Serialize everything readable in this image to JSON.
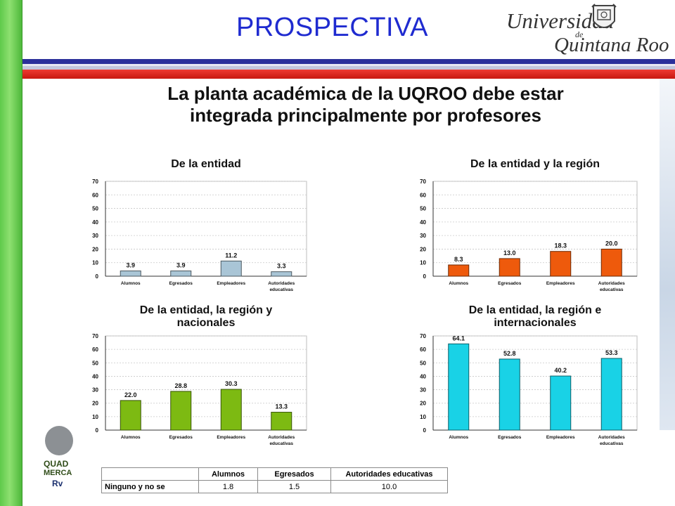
{
  "slide_title": "PROSPECTIVA",
  "logo": {
    "word1": "Universidad",
    "word2": "de",
    "word3": "Quintana Roo"
  },
  "heading": {
    "line1": "La planta académica de la UQROO debe estar",
    "line2": "integrada principalmente por profesores"
  },
  "side_logo": {
    "line1": "QUAD",
    "line2": "MERCA",
    "line3": "Rv"
  },
  "colors": {
    "title": "#1f2bd0",
    "chart1_bar": "#a9c5d6",
    "chart2_bar": "#ee5a0c",
    "chart3_bar": "#7dba12",
    "chart4_bar": "#19d2e6",
    "left_bar": "#5fc94a",
    "stripe_blue": "#2b2f9a",
    "stripe_red": "#e0271e"
  },
  "chart_data": [
    {
      "type": "bar",
      "title_lines": [
        "De la entidad"
      ],
      "categories": [
        "Alumnos",
        "Egresados",
        "Empleadores",
        "Autoridades educativas"
      ],
      "values": [
        3.9,
        3.9,
        11.2,
        3.3
      ],
      "value_labels": [
        "3.9",
        "3.9",
        "11.2",
        "3.3"
      ],
      "ylim": [
        0,
        70
      ],
      "yticks": [
        "70",
        "60",
        "50",
        "40",
        "30",
        "20",
        "10",
        "0"
      ],
      "grid": true
    },
    {
      "type": "bar",
      "title_lines": [
        "De la entidad y la región"
      ],
      "categories": [
        "Alumnos",
        "Egresados",
        "Empleadores",
        "Autoridades educativas"
      ],
      "values": [
        8.3,
        13.0,
        18.3,
        20.0
      ],
      "value_labels": [
        "8.3",
        "13.0",
        "18.3",
        "20.0"
      ],
      "ylim": [
        0,
        70
      ],
      "yticks": [
        "70",
        "60",
        "50",
        "40",
        "30",
        "20",
        "10",
        "0"
      ],
      "grid": true
    },
    {
      "type": "bar",
      "title_lines": [
        "De la entidad, la región y",
        "nacionales"
      ],
      "categories": [
        "Alumnos",
        "Egresados",
        "Empleadores",
        "Autoridades educativas"
      ],
      "values": [
        22.0,
        28.8,
        30.3,
        13.3
      ],
      "value_labels": [
        "22.0",
        "28.8",
        "30.3",
        "13.3"
      ],
      "ylim": [
        0,
        70
      ],
      "yticks": [
        "70",
        "60",
        "50",
        "40",
        "30",
        "20",
        "10",
        "0"
      ],
      "grid": true
    },
    {
      "type": "bar",
      "title_lines": [
        "De la entidad, la región e",
        "internacionales"
      ],
      "categories": [
        "Alumnos",
        "Egresados",
        "Empleadores",
        "Autoridades educativas"
      ],
      "values": [
        64.1,
        52.8,
        40.2,
        53.3
      ],
      "value_labels": [
        "64.1",
        "52.8",
        "40.2",
        "53.3"
      ],
      "ylim": [
        0,
        70
      ],
      "yticks": [
        "70",
        "60",
        "50",
        "40",
        "30",
        "20",
        "10",
        "0"
      ],
      "grid": true
    }
  ],
  "table": {
    "headers": [
      "",
      "Alumnos",
      "Egresados",
      "Autoridades educativas"
    ],
    "rows": [
      {
        "label": "Ninguno y no se",
        "values": [
          "1.8",
          "1.5",
          "10.0"
        ]
      }
    ]
  }
}
